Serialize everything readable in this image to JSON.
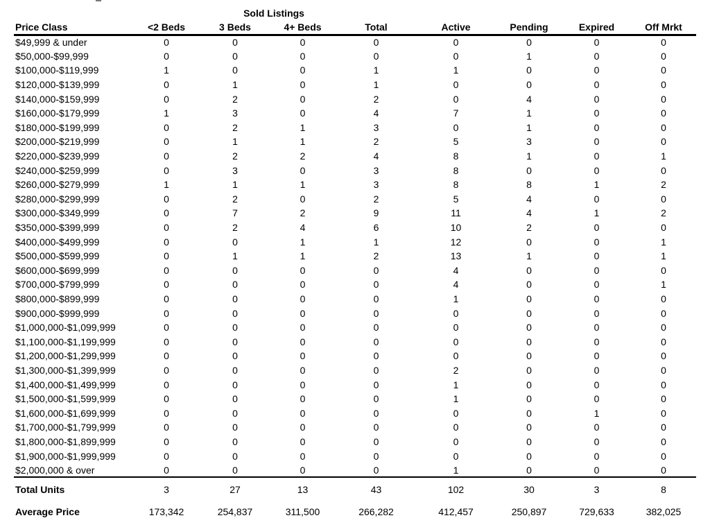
{
  "artifact_note": "",
  "table": {
    "group_header": "Sold Listings",
    "columns": [
      "Price Class",
      "<2 Beds",
      "3 Beds",
      "4+ Beds",
      "Total",
      "Active",
      "Pending",
      "Expired",
      "Off Mrkt"
    ],
    "rows": [
      {
        "label": "$49,999 & under",
        "values": [
          0,
          0,
          0,
          0,
          0,
          0,
          0,
          0
        ]
      },
      {
        "label": "$50,000-$99,999",
        "values": [
          0,
          0,
          0,
          0,
          0,
          1,
          0,
          0
        ]
      },
      {
        "label": "$100,000-$119,999",
        "values": [
          1,
          0,
          0,
          1,
          1,
          0,
          0,
          0
        ]
      },
      {
        "label": "$120,000-$139,999",
        "values": [
          0,
          1,
          0,
          1,
          0,
          0,
          0,
          0
        ]
      },
      {
        "label": "$140,000-$159,999",
        "values": [
          0,
          2,
          0,
          2,
          0,
          4,
          0,
          0
        ]
      },
      {
        "label": "$160,000-$179,999",
        "values": [
          1,
          3,
          0,
          4,
          7,
          1,
          0,
          0
        ]
      },
      {
        "label": "$180,000-$199,999",
        "values": [
          0,
          2,
          1,
          3,
          0,
          1,
          0,
          0
        ]
      },
      {
        "label": "$200,000-$219,999",
        "values": [
          0,
          1,
          1,
          2,
          5,
          3,
          0,
          0
        ]
      },
      {
        "label": "$220,000-$239,999",
        "values": [
          0,
          2,
          2,
          4,
          8,
          1,
          0,
          1
        ]
      },
      {
        "label": "$240,000-$259,999",
        "values": [
          0,
          3,
          0,
          3,
          8,
          0,
          0,
          0
        ]
      },
      {
        "label": "$260,000-$279,999",
        "values": [
          1,
          1,
          1,
          3,
          8,
          8,
          1,
          2
        ]
      },
      {
        "label": "$280,000-$299,999",
        "values": [
          0,
          2,
          0,
          2,
          5,
          4,
          0,
          0
        ]
      },
      {
        "label": "$300,000-$349,999",
        "values": [
          0,
          7,
          2,
          9,
          11,
          4,
          1,
          2
        ]
      },
      {
        "label": "$350,000-$399,999",
        "values": [
          0,
          2,
          4,
          6,
          10,
          2,
          0,
          0
        ]
      },
      {
        "label": "$400,000-$499,999",
        "values": [
          0,
          0,
          1,
          1,
          12,
          0,
          0,
          1
        ]
      },
      {
        "label": "$500,000-$599,999",
        "values": [
          0,
          1,
          1,
          2,
          13,
          1,
          0,
          1
        ]
      },
      {
        "label": "$600,000-$699,999",
        "values": [
          0,
          0,
          0,
          0,
          4,
          0,
          0,
          0
        ]
      },
      {
        "label": "$700,000-$799,999",
        "values": [
          0,
          0,
          0,
          0,
          4,
          0,
          0,
          1
        ]
      },
      {
        "label": "$800,000-$899,999",
        "values": [
          0,
          0,
          0,
          0,
          1,
          0,
          0,
          0
        ]
      },
      {
        "label": "$900,000-$999,999",
        "values": [
          0,
          0,
          0,
          0,
          0,
          0,
          0,
          0
        ]
      },
      {
        "label": "$1,000,000-$1,099,999",
        "values": [
          0,
          0,
          0,
          0,
          0,
          0,
          0,
          0
        ]
      },
      {
        "label": "$1,100,000-$1,199,999",
        "values": [
          0,
          0,
          0,
          0,
          0,
          0,
          0,
          0
        ]
      },
      {
        "label": "$1,200,000-$1,299,999",
        "values": [
          0,
          0,
          0,
          0,
          0,
          0,
          0,
          0
        ]
      },
      {
        "label": "$1,300,000-$1,399,999",
        "values": [
          0,
          0,
          0,
          0,
          2,
          0,
          0,
          0
        ]
      },
      {
        "label": "$1,400,000-$1,499,999",
        "values": [
          0,
          0,
          0,
          0,
          1,
          0,
          0,
          0
        ]
      },
      {
        "label": "$1,500,000-$1,599,999",
        "values": [
          0,
          0,
          0,
          0,
          1,
          0,
          0,
          0
        ]
      },
      {
        "label": "$1,600,000-$1,699,999",
        "values": [
          0,
          0,
          0,
          0,
          0,
          0,
          1,
          0
        ]
      },
      {
        "label": "$1,700,000-$1,799,999",
        "values": [
          0,
          0,
          0,
          0,
          0,
          0,
          0,
          0
        ]
      },
      {
        "label": "$1,800,000-$1,899,999",
        "values": [
          0,
          0,
          0,
          0,
          0,
          0,
          0,
          0
        ]
      },
      {
        "label": "$1,900,000-$1,999,999",
        "values": [
          0,
          0,
          0,
          0,
          0,
          0,
          0,
          0
        ]
      },
      {
        "label": "$2,000,000 & over",
        "values": [
          0,
          0,
          0,
          0,
          1,
          0,
          0,
          0
        ]
      }
    ],
    "totals": {
      "label": "Total Units",
      "values": [
        "3",
        "27",
        "13",
        "43",
        "102",
        "30",
        "3",
        "8"
      ]
    },
    "average": {
      "label": "Average Price",
      "values": [
        "173,342",
        "254,837",
        "311,500",
        "266,282",
        "412,457",
        "250,897",
        "729,633",
        "382,025"
      ]
    }
  },
  "chart_data": {
    "type": "table",
    "title": "Sold Listings",
    "categories": [
      "$49,999 & under",
      "$50,000-$99,999",
      "$100,000-$119,999",
      "$120,000-$139,999",
      "$140,000-$159,999",
      "$160,000-$179,999",
      "$180,000-$199,999",
      "$200,000-$219,999",
      "$220,000-$239,999",
      "$240,000-$259,999",
      "$260,000-$279,999",
      "$280,000-$299,999",
      "$300,000-$349,999",
      "$350,000-$399,999",
      "$400,000-$499,999",
      "$500,000-$599,999",
      "$600,000-$699,999",
      "$700,000-$799,999",
      "$800,000-$899,999",
      "$900,000-$999,999",
      "$1,000,000-$1,099,999",
      "$1,100,000-$1,199,999",
      "$1,200,000-$1,299,999",
      "$1,300,000-$1,399,999",
      "$1,400,000-$1,499,999",
      "$1,500,000-$1,599,999",
      "$1,600,000-$1,699,999",
      "$1,700,000-$1,799,999",
      "$1,800,000-$1,899,999",
      "$1,900,000-$1,999,999",
      "$2,000,000 & over"
    ],
    "series": [
      {
        "name": "<2 Beds",
        "values": [
          0,
          0,
          1,
          0,
          0,
          1,
          0,
          0,
          0,
          0,
          1,
          0,
          0,
          0,
          0,
          0,
          0,
          0,
          0,
          0,
          0,
          0,
          0,
          0,
          0,
          0,
          0,
          0,
          0,
          0,
          0
        ],
        "total_units": 3,
        "average_price": 173342
      },
      {
        "name": "3 Beds",
        "values": [
          0,
          0,
          0,
          1,
          2,
          3,
          2,
          1,
          2,
          3,
          1,
          2,
          7,
          2,
          0,
          1,
          0,
          0,
          0,
          0,
          0,
          0,
          0,
          0,
          0,
          0,
          0,
          0,
          0,
          0,
          0
        ],
        "total_units": 27,
        "average_price": 254837
      },
      {
        "name": "4+ Beds",
        "values": [
          0,
          0,
          0,
          0,
          0,
          0,
          1,
          1,
          2,
          0,
          1,
          0,
          2,
          4,
          1,
          1,
          0,
          0,
          0,
          0,
          0,
          0,
          0,
          0,
          0,
          0,
          0,
          0,
          0,
          0,
          0
        ],
        "total_units": 13,
        "average_price": 311500
      },
      {
        "name": "Total",
        "values": [
          0,
          0,
          1,
          1,
          2,
          4,
          3,
          2,
          4,
          3,
          3,
          2,
          9,
          6,
          1,
          2,
          0,
          0,
          0,
          0,
          0,
          0,
          0,
          0,
          0,
          0,
          0,
          0,
          0,
          0,
          0
        ],
        "total_units": 43,
        "average_price": 266282
      },
      {
        "name": "Active",
        "values": [
          0,
          0,
          1,
          0,
          0,
          7,
          0,
          5,
          8,
          8,
          8,
          5,
          11,
          10,
          12,
          13,
          4,
          4,
          1,
          0,
          0,
          0,
          0,
          2,
          1,
          1,
          0,
          0,
          0,
          0,
          1
        ],
        "total_units": 102,
        "average_price": 412457
      },
      {
        "name": "Pending",
        "values": [
          0,
          1,
          0,
          0,
          4,
          1,
          1,
          3,
          1,
          0,
          8,
          4,
          4,
          2,
          0,
          1,
          0,
          0,
          0,
          0,
          0,
          0,
          0,
          0,
          0,
          0,
          0,
          0,
          0,
          0,
          0
        ],
        "total_units": 30,
        "average_price": 250897
      },
      {
        "name": "Expired",
        "values": [
          0,
          0,
          0,
          0,
          0,
          0,
          0,
          0,
          0,
          0,
          1,
          0,
          1,
          0,
          0,
          0,
          0,
          0,
          0,
          0,
          0,
          0,
          0,
          0,
          0,
          0,
          1,
          0,
          0,
          0,
          0
        ],
        "total_units": 3,
        "average_price": 729633
      },
      {
        "name": "Off Mrkt",
        "values": [
          0,
          0,
          0,
          0,
          0,
          0,
          0,
          0,
          1,
          0,
          2,
          0,
          2,
          0,
          1,
          1,
          0,
          1,
          0,
          0,
          0,
          0,
          0,
          0,
          0,
          0,
          0,
          0,
          0,
          0,
          0
        ],
        "total_units": 8,
        "average_price": 382025
      }
    ]
  }
}
